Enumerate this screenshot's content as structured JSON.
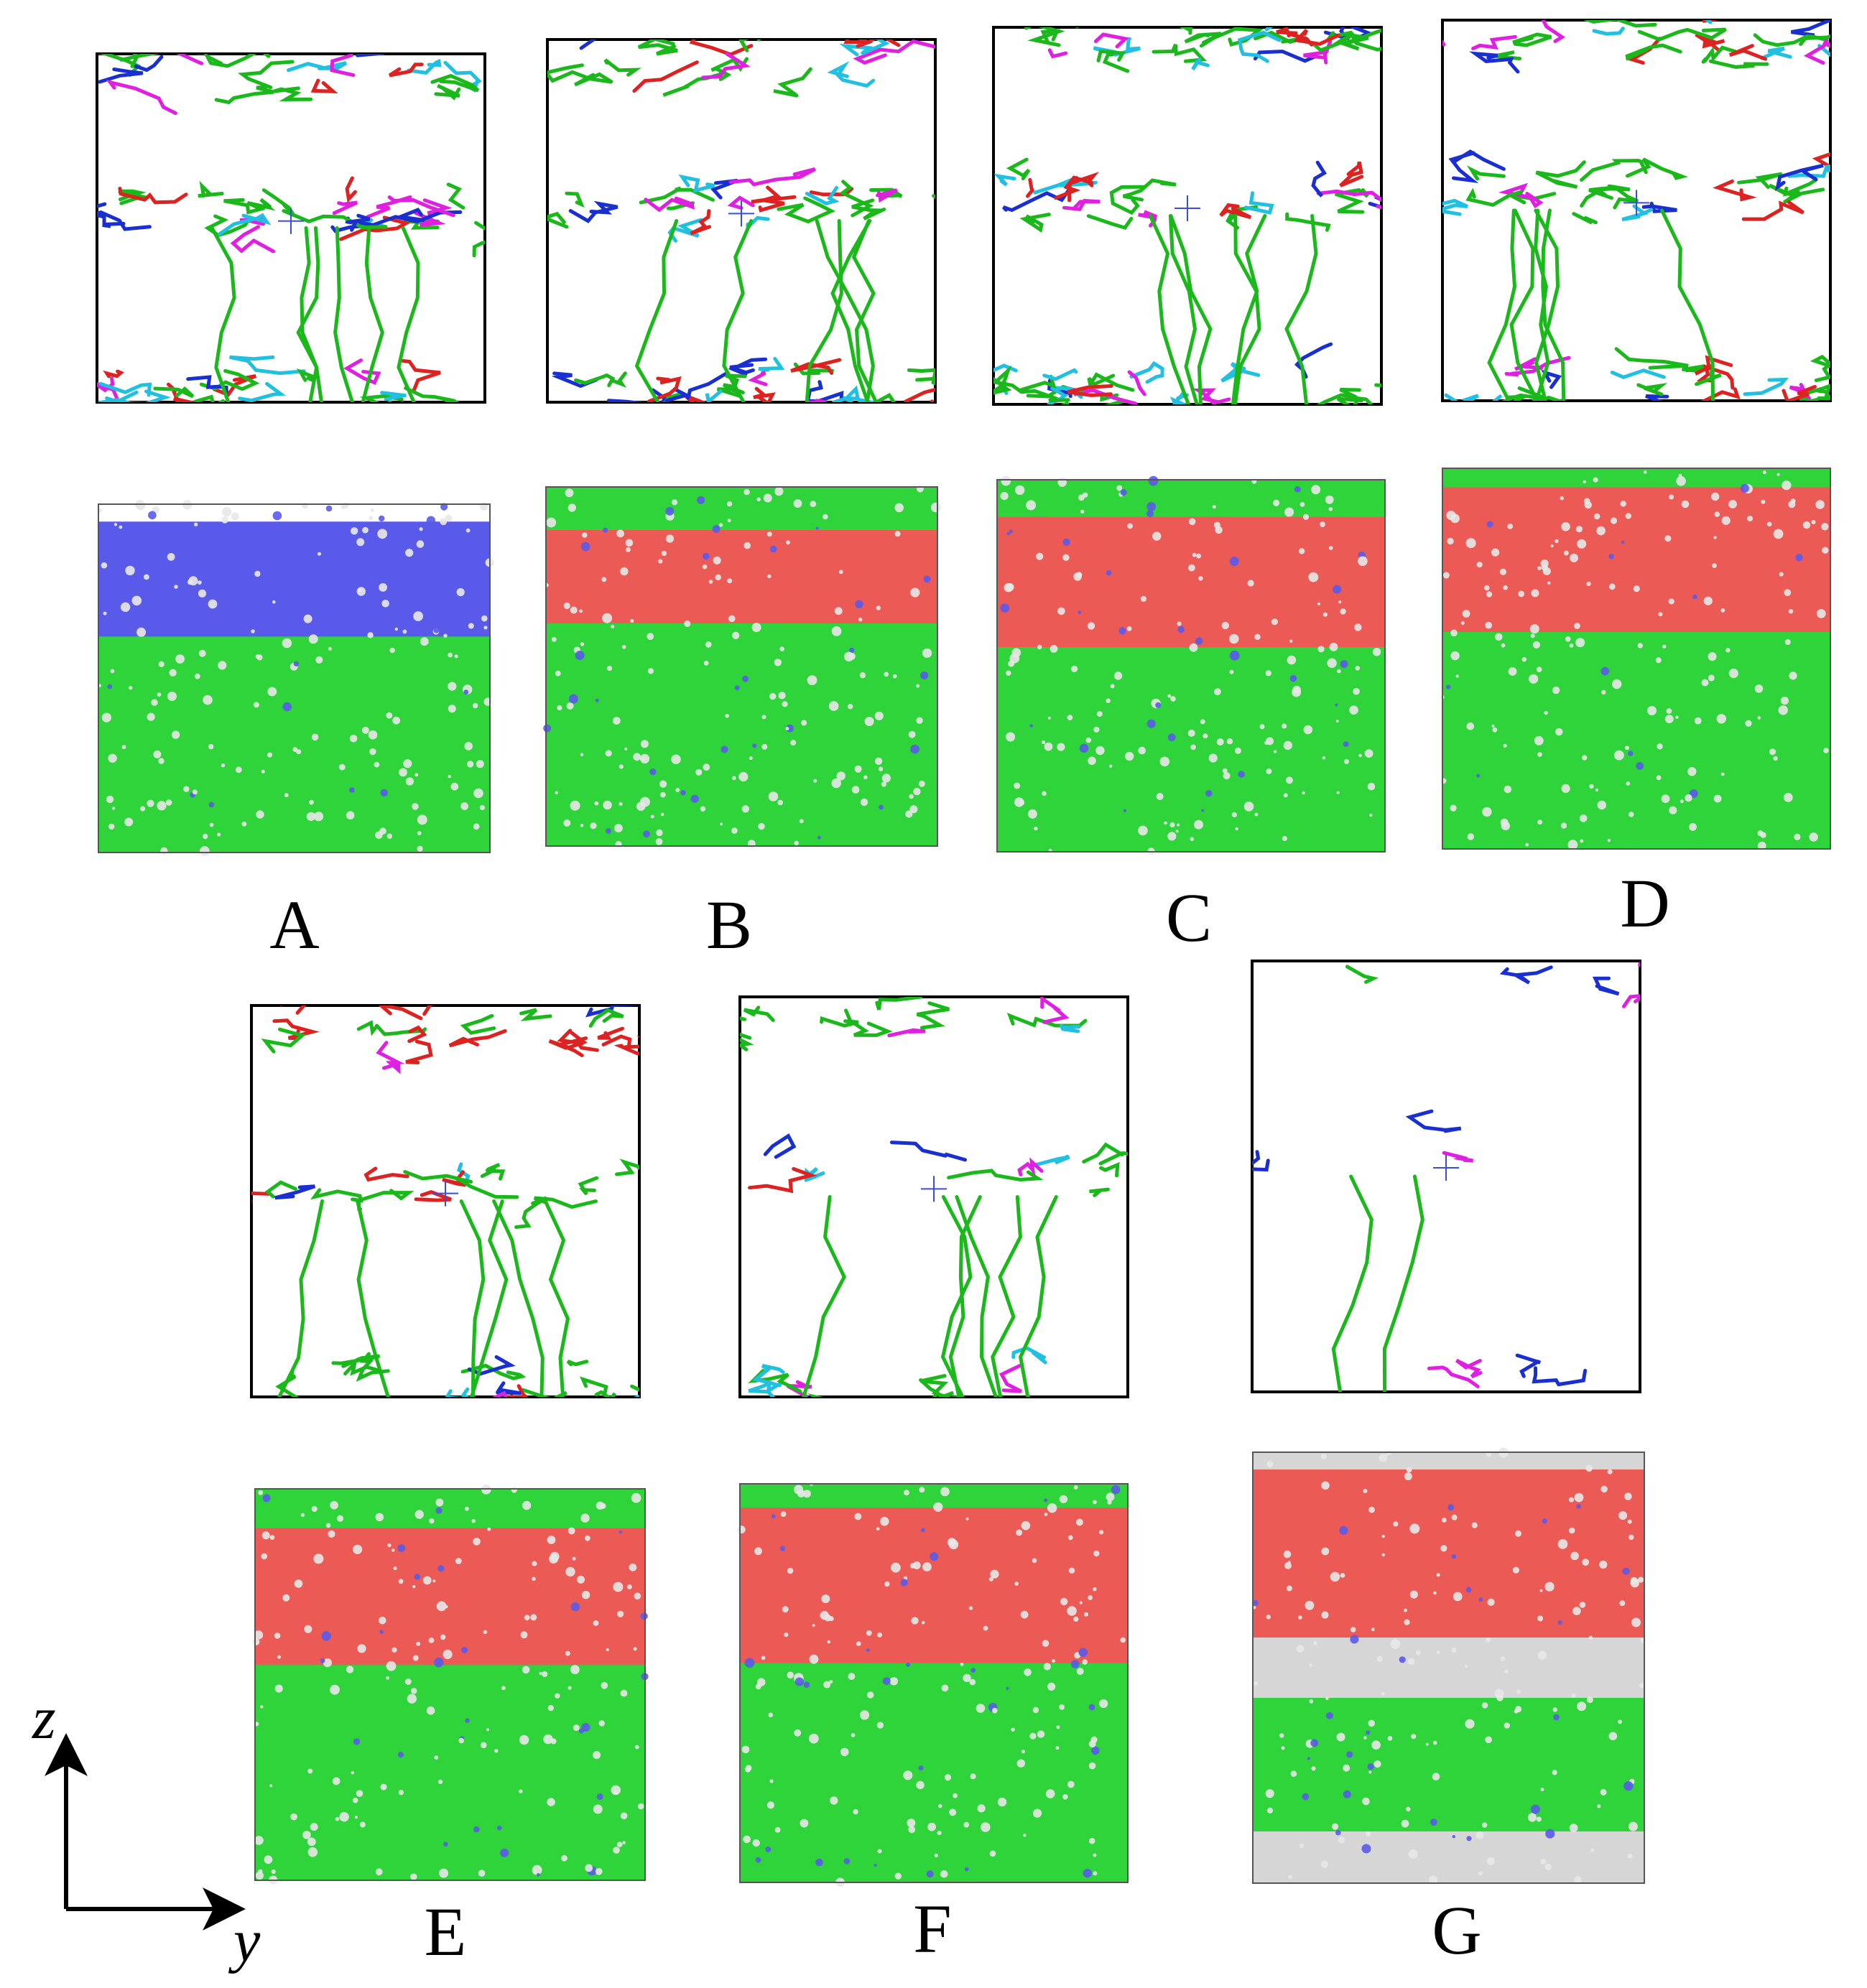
{
  "colors": {
    "fcc": "#2fd43a",
    "hcp": "#ec5a55",
    "bcc": "#5a5aea",
    "other": "#d6d6d6",
    "dislocation_main": "#1bb81b",
    "dislocation_red": "#dd2222",
    "dislocation_blue": "#1a2fd0",
    "dislocation_magenta": "#e020e0",
    "dislocation_cyan": "#22c0e0",
    "dislocation_yellow": "#e8d800",
    "center_marker": "#3a4fd8"
  },
  "panels": [
    {
      "label": "A",
      "bands": [
        [
          "bcc",
          0.05,
          0.38
        ],
        [
          "fcc",
          0.38,
          1.0
        ]
      ],
      "network": "dense"
    },
    {
      "label": "B",
      "bands": [
        [
          "fcc",
          0.0,
          0.12
        ],
        [
          "hcp",
          0.12,
          0.38
        ],
        [
          "fcc",
          0.38,
          1.0
        ]
      ],
      "network": "dense"
    },
    {
      "label": "C",
      "bands": [
        [
          "fcc",
          0.0,
          0.1
        ],
        [
          "hcp",
          0.1,
          0.45
        ],
        [
          "fcc",
          0.45,
          1.0
        ]
      ],
      "network": "dense"
    },
    {
      "label": "D",
      "bands": [
        [
          "fcc",
          0.0,
          0.05
        ],
        [
          "hcp",
          0.05,
          0.43
        ],
        [
          "fcc",
          0.43,
          1.0
        ]
      ],
      "network": "dense"
    },
    {
      "label": "E",
      "bands": [
        [
          "fcc",
          0.0,
          0.1
        ],
        [
          "hcp",
          0.1,
          0.45
        ],
        [
          "fcc",
          0.45,
          1.0
        ]
      ],
      "network": "medium"
    },
    {
      "label": "F",
      "bands": [
        [
          "fcc",
          0.0,
          0.06
        ],
        [
          "hcp",
          0.06,
          0.45
        ],
        [
          "fcc",
          0.45,
          1.0
        ]
      ],
      "network": "sparse"
    },
    {
      "label": "G",
      "bands": [
        [
          "other",
          0.0,
          0.04
        ],
        [
          "hcp",
          0.04,
          0.43
        ],
        [
          "other",
          0.43,
          0.57
        ],
        [
          "fcc",
          0.57,
          0.88
        ],
        [
          "other",
          0.88,
          1.0
        ]
      ],
      "network": "very-sparse"
    }
  ],
  "axes": {
    "vertical_label": "z",
    "horizontal_label": "y"
  }
}
